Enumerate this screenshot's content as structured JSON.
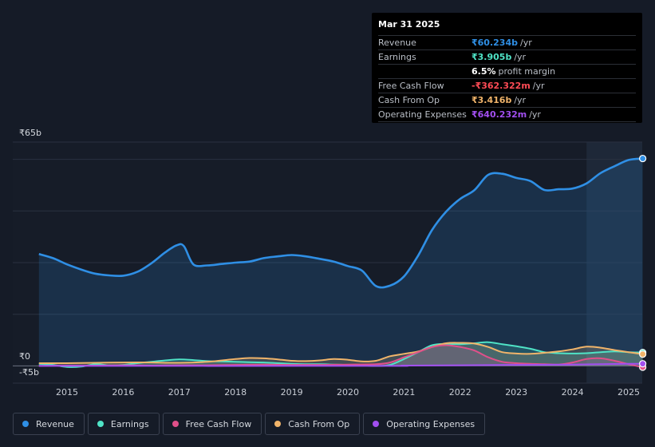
{
  "chart_data": {
    "type": "line",
    "y_axis": {
      "top_label": "₹65b",
      "zero_label": "₹0",
      "bottom_label": "-₹5b",
      "ylim": [
        -5,
        65
      ]
    },
    "x_ticks": [
      "2015",
      "2016",
      "2017",
      "2018",
      "2019",
      "2020",
      "2021",
      "2022",
      "2023",
      "2024",
      "2025"
    ],
    "forecast_shaded_from": 2024.25,
    "series": [
      {
        "name": "Revenue",
        "color": "#2f8fe5",
        "fill": true,
        "points": [
          [
            2014.5,
            32.5
          ],
          [
            2014.75,
            31.3
          ],
          [
            2015.0,
            29.5
          ],
          [
            2015.25,
            28.0
          ],
          [
            2015.5,
            26.8
          ],
          [
            2015.75,
            26.3
          ],
          [
            2016.0,
            26.2
          ],
          [
            2016.25,
            27.3
          ],
          [
            2016.5,
            29.8
          ],
          [
            2016.75,
            33.0
          ],
          [
            2016.95,
            35.0
          ],
          [
            2017.08,
            34.8
          ],
          [
            2017.25,
            29.5
          ],
          [
            2017.5,
            29.2
          ],
          [
            2017.75,
            29.6
          ],
          [
            2018.0,
            30.0
          ],
          [
            2018.25,
            30.3
          ],
          [
            2018.5,
            31.3
          ],
          [
            2018.75,
            31.8
          ],
          [
            2019.0,
            32.2
          ],
          [
            2019.25,
            31.8
          ],
          [
            2019.5,
            31.1
          ],
          [
            2019.75,
            30.3
          ],
          [
            2020.0,
            29.0
          ],
          [
            2020.25,
            27.7
          ],
          [
            2020.5,
            23.2
          ],
          [
            2020.75,
            23.3
          ],
          [
            2021.0,
            26.0
          ],
          [
            2021.25,
            32.0
          ],
          [
            2021.5,
            39.5
          ],
          [
            2021.75,
            44.8
          ],
          [
            2022.0,
            48.5
          ],
          [
            2022.25,
            51.0
          ],
          [
            2022.5,
            55.5
          ],
          [
            2022.75,
            55.8
          ],
          [
            2023.0,
            54.6
          ],
          [
            2023.25,
            53.7
          ],
          [
            2023.5,
            51.1
          ],
          [
            2023.75,
            51.3
          ],
          [
            2024.0,
            51.5
          ],
          [
            2024.25,
            53.0
          ],
          [
            2024.5,
            56.0
          ],
          [
            2024.75,
            58.0
          ],
          [
            2025.0,
            59.8
          ],
          [
            2025.25,
            60.234
          ]
        ]
      },
      {
        "name": "Earnings",
        "color": "#4fe3c6",
        "fill": true,
        "points": [
          [
            2014.5,
            0.6
          ],
          [
            2014.75,
            0.3
          ],
          [
            2015.0,
            -0.3
          ],
          [
            2015.25,
            -0.2
          ],
          [
            2015.5,
            0.5
          ],
          [
            2015.75,
            0.2
          ],
          [
            2016.0,
            0.3
          ],
          [
            2016.25,
            0.8
          ],
          [
            2016.5,
            1.2
          ],
          [
            2016.75,
            1.6
          ],
          [
            2017.0,
            1.9
          ],
          [
            2017.25,
            1.7
          ],
          [
            2017.5,
            1.4
          ],
          [
            2017.75,
            1.3
          ],
          [
            2018.0,
            1.2
          ],
          [
            2018.25,
            1.1
          ],
          [
            2018.5,
            1.0
          ],
          [
            2018.75,
            0.8
          ],
          [
            2019.0,
            0.6
          ],
          [
            2019.25,
            0.5
          ],
          [
            2019.5,
            0.5
          ],
          [
            2019.75,
            0.4
          ],
          [
            2020.0,
            0.3
          ],
          [
            2020.25,
            0.2
          ],
          [
            2020.5,
            0.0
          ],
          [
            2020.75,
            0.3
          ],
          [
            2021.0,
            2.0
          ],
          [
            2021.25,
            4.0
          ],
          [
            2021.5,
            6.0
          ],
          [
            2021.75,
            6.4
          ],
          [
            2022.0,
            6.3
          ],
          [
            2022.25,
            6.6
          ],
          [
            2022.5,
            6.9
          ],
          [
            2022.75,
            6.3
          ],
          [
            2023.0,
            5.7
          ],
          [
            2023.25,
            5.0
          ],
          [
            2023.5,
            4.0
          ],
          [
            2023.75,
            3.7
          ],
          [
            2024.0,
            3.6
          ],
          [
            2024.25,
            3.7
          ],
          [
            2024.5,
            4.0
          ],
          [
            2024.75,
            4.2
          ],
          [
            2025.0,
            4.0
          ],
          [
            2025.25,
            3.905
          ]
        ]
      },
      {
        "name": "Free Cash Flow",
        "color": "#e0508a",
        "fill": true,
        "points": [
          [
            2014.5,
            0.0
          ],
          [
            2015.0,
            0.1
          ],
          [
            2015.5,
            0.1
          ],
          [
            2016.0,
            0.2
          ],
          [
            2016.5,
            0.1
          ],
          [
            2017.0,
            0.2
          ],
          [
            2017.5,
            0.2
          ],
          [
            2018.0,
            0.3
          ],
          [
            2018.5,
            0.4
          ],
          [
            2019.0,
            0.3
          ],
          [
            2019.5,
            0.3
          ],
          [
            2020.0,
            0.4
          ],
          [
            2020.5,
            0.5
          ],
          [
            2020.75,
            1.0
          ],
          [
            2021.0,
            2.5
          ],
          [
            2021.25,
            4.0
          ],
          [
            2021.5,
            5.5
          ],
          [
            2021.75,
            6.0
          ],
          [
            2022.0,
            5.5
          ],
          [
            2022.25,
            4.5
          ],
          [
            2022.5,
            2.5
          ],
          [
            2022.75,
            1.2
          ],
          [
            2023.0,
            0.8
          ],
          [
            2023.25,
            0.6
          ],
          [
            2023.5,
            0.5
          ],
          [
            2023.75,
            0.4
          ],
          [
            2024.0,
            1.0
          ],
          [
            2024.25,
            2.0
          ],
          [
            2024.5,
            2.2
          ],
          [
            2024.75,
            1.5
          ],
          [
            2025.0,
            0.5
          ],
          [
            2025.25,
            -0.362
          ]
        ]
      },
      {
        "name": "Cash From Op",
        "color": "#f0b46a",
        "fill": true,
        "points": [
          [
            2014.5,
            0.8
          ],
          [
            2015.0,
            0.8
          ],
          [
            2015.5,
            0.9
          ],
          [
            2016.0,
            1.0
          ],
          [
            2016.5,
            1.0
          ],
          [
            2017.0,
            0.9
          ],
          [
            2017.5,
            1.2
          ],
          [
            2018.0,
            2.0
          ],
          [
            2018.25,
            2.3
          ],
          [
            2018.5,
            2.2
          ],
          [
            2018.75,
            1.9
          ],
          [
            2019.0,
            1.5
          ],
          [
            2019.25,
            1.4
          ],
          [
            2019.5,
            1.6
          ],
          [
            2019.75,
            2.0
          ],
          [
            2020.0,
            1.8
          ],
          [
            2020.25,
            1.3
          ],
          [
            2020.5,
            1.5
          ],
          [
            2020.75,
            2.8
          ],
          [
            2021.0,
            3.5
          ],
          [
            2021.25,
            4.2
          ],
          [
            2021.5,
            5.5
          ],
          [
            2021.75,
            6.6
          ],
          [
            2022.0,
            6.7
          ],
          [
            2022.25,
            6.5
          ],
          [
            2022.5,
            5.5
          ],
          [
            2022.75,
            4.0
          ],
          [
            2023.0,
            3.6
          ],
          [
            2023.25,
            3.5
          ],
          [
            2023.5,
            3.8
          ],
          [
            2023.75,
            4.2
          ],
          [
            2024.0,
            4.8
          ],
          [
            2024.25,
            5.6
          ],
          [
            2024.5,
            5.3
          ],
          [
            2024.75,
            4.6
          ],
          [
            2025.0,
            4.0
          ],
          [
            2025.25,
            3.416
          ]
        ]
      },
      {
        "name": "Operating Expenses",
        "color": "#a24ff0",
        "fill": false,
        "points": [
          [
            2014.5,
            0.0
          ],
          [
            2020.5,
            0.0
          ],
          [
            2021.0,
            0.1
          ],
          [
            2022.0,
            0.2
          ],
          [
            2023.0,
            0.3
          ],
          [
            2024.0,
            0.4
          ],
          [
            2025.0,
            0.6
          ],
          [
            2025.25,
            0.64
          ]
        ]
      }
    ]
  },
  "tooltip": {
    "date": "Mar 31 2025",
    "rows": [
      {
        "label": "Revenue",
        "value": "₹60.234b",
        "unit": "/yr",
        "color": "#2f8fe5"
      },
      {
        "label": "Earnings",
        "value": "₹3.905b",
        "unit": "/yr",
        "color": "#4fe3c6"
      },
      {
        "label": "",
        "value": "6.5%",
        "unit": "profit margin",
        "color": "#ffffff"
      },
      {
        "label": "Free Cash Flow",
        "value": "-₹362.322m",
        "unit": "/yr",
        "color": "#ff4b55"
      },
      {
        "label": "Cash From Op",
        "value": "₹3.416b",
        "unit": "/yr",
        "color": "#f0b46a"
      },
      {
        "label": "Operating Expenses",
        "value": "₹640.232m",
        "unit": "/yr",
        "color": "#a24ff0"
      }
    ]
  },
  "legend": [
    {
      "label": "Revenue",
      "color": "#2f8fe5"
    },
    {
      "label": "Earnings",
      "color": "#4fe3c6"
    },
    {
      "label": "Free Cash Flow",
      "color": "#e0508a"
    },
    {
      "label": "Cash From Op",
      "color": "#f0b46a"
    },
    {
      "label": "Operating Expenses",
      "color": "#a24ff0"
    }
  ]
}
